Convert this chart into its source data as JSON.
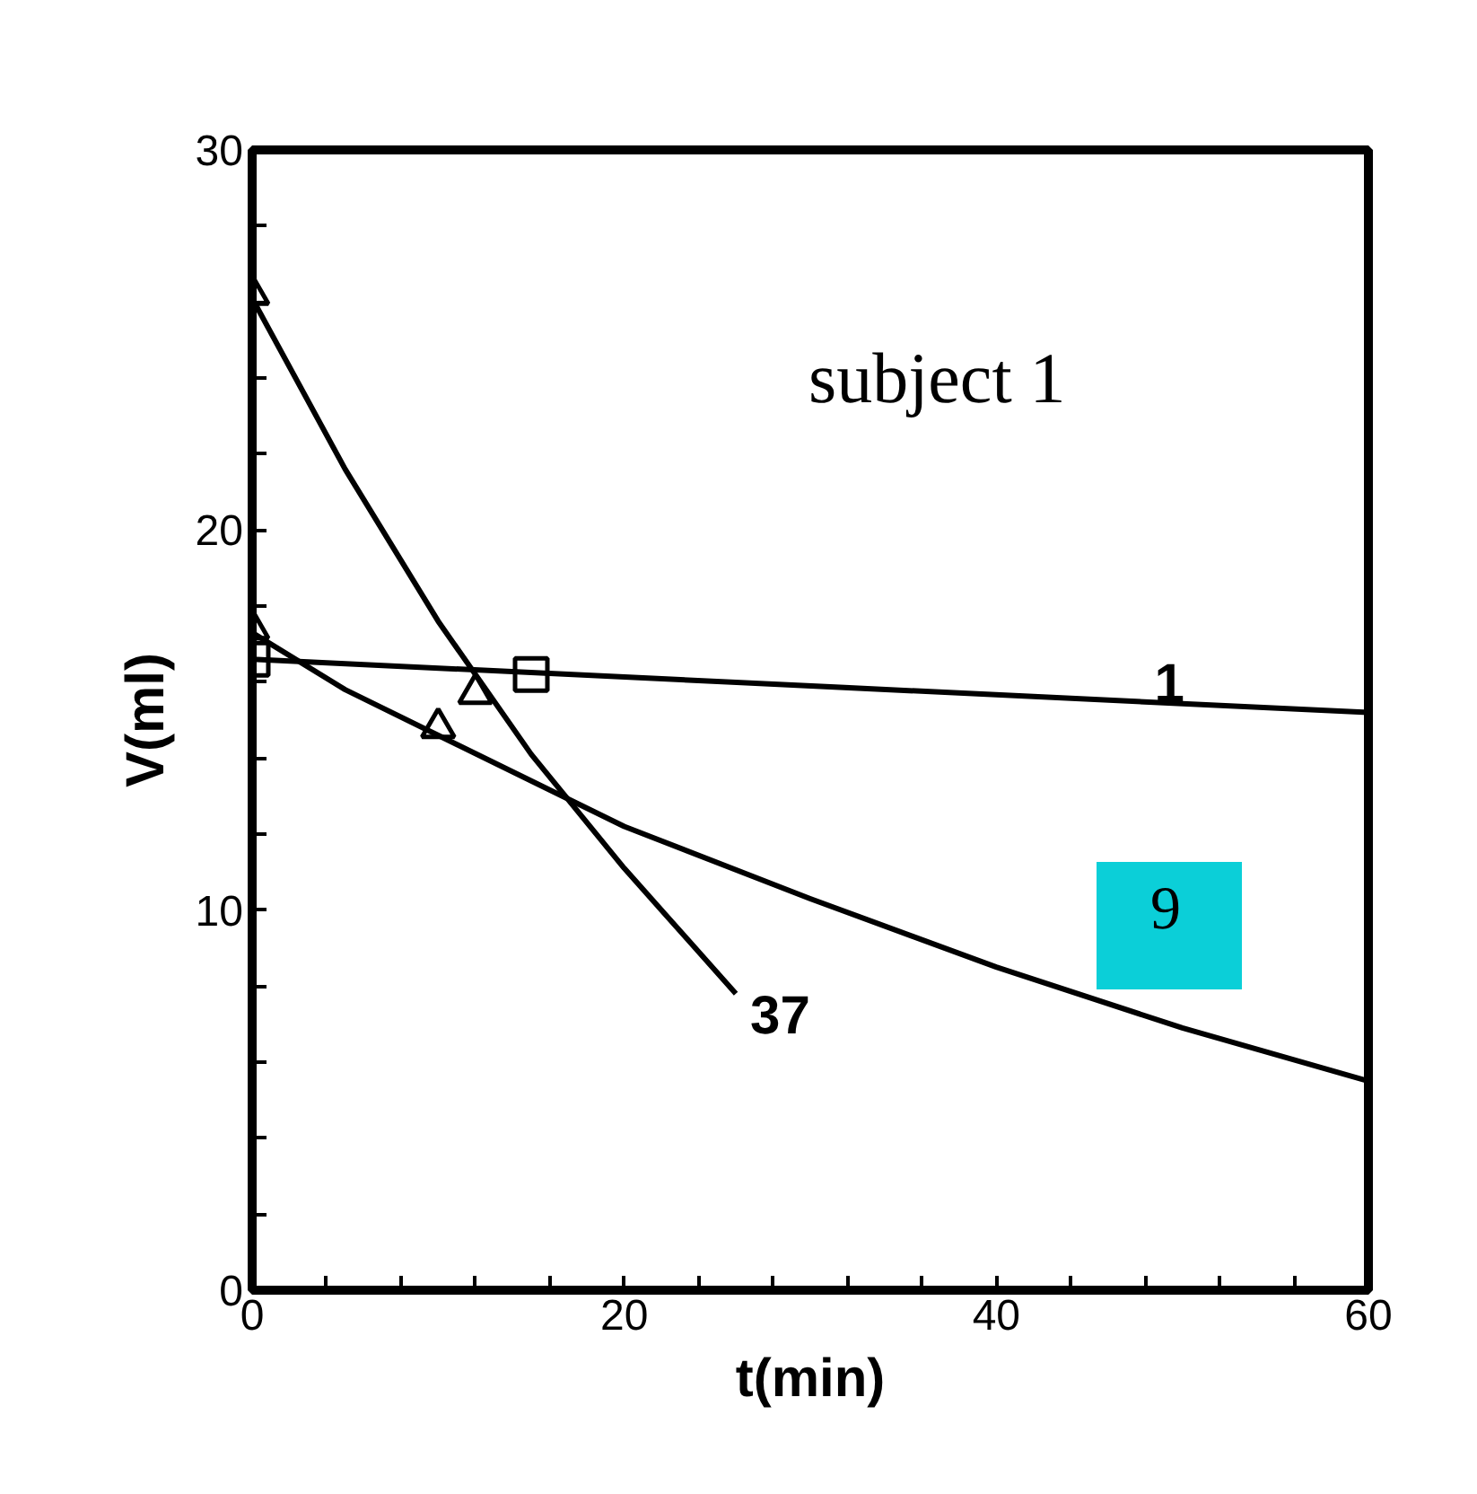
{
  "chart_data": {
    "type": "line",
    "xlabel": "t(min)",
    "ylabel": "V(ml)",
    "xlim": [
      0,
      60
    ],
    "ylim": [
      0,
      30
    ],
    "xticks": [
      0,
      {
        "value": 4,
        "label": null
      },
      {
        "value": 8,
        "label": null
      },
      {
        "value": 12,
        "label": null
      },
      {
        "value": 16,
        "label": null
      },
      20,
      {
        "value": 24,
        "label": null
      },
      {
        "value": 28,
        "label": null
      },
      {
        "value": 32,
        "label": null
      },
      {
        "value": 36,
        "label": null
      },
      40,
      {
        "value": 44,
        "label": null
      },
      {
        "value": 48,
        "label": null
      },
      {
        "value": 52,
        "label": null
      },
      {
        "value": 56,
        "label": null
      },
      60
    ],
    "yticks": [
      0,
      {
        "value": 2,
        "label": null
      },
      {
        "value": 4,
        "label": null
      },
      {
        "value": 6,
        "label": null
      },
      {
        "value": 8,
        "label": null
      },
      10,
      {
        "value": 12,
        "label": null
      },
      {
        "value": 14,
        "label": null
      },
      {
        "value": 16,
        "label": null
      },
      {
        "value": 18,
        "label": null
      },
      20,
      {
        "value": 22,
        "label": null
      },
      {
        "value": 24,
        "label": null
      },
      {
        "value": 26,
        "label": null
      },
      {
        "value": 28,
        "label": null
      },
      30
    ],
    "grid": false,
    "line_style": "solid",
    "series": [
      {
        "color": "#000000",
        "x": [
          0,
          60
        ],
        "values": [
          16.6,
          15.2
        ]
      },
      {
        "color": "#000000",
        "x": [
          0,
          5,
          10,
          15,
          20,
          30,
          40,
          50,
          60
        ],
        "values": [
          17.3,
          15.8,
          14.6,
          13.4,
          12.2,
          10.3,
          8.5,
          6.9,
          5.5
        ]
      },
      {
        "color": "#000000",
        "x": [
          0,
          5,
          10,
          15,
          20,
          26
        ],
        "values": [
          26.1,
          21.6,
          17.6,
          14.1,
          11.1,
          7.8
        ]
      },
      {
        "type": "scatter",
        "color": "#000000",
        "marker": "square",
        "x": [
          0,
          15
        ],
        "values": [
          16.6,
          16.2
        ]
      },
      {
        "type": "scatter",
        "color": "#000000",
        "marker": "triangle",
        "x": [
          0,
          10
        ],
        "values": [
          17.4,
          14.8
        ]
      },
      {
        "type": "scatter",
        "color": "#000000",
        "marker": "triangle",
        "x": [
          0,
          12
        ],
        "values": [
          26.2,
          15.7
        ]
      }
    ],
    "annotations": [
      "subject 1",
      {
        "text": "1",
        "x": 48.5,
        "y": 15.5
      },
      "9",
      {
        "text": "37",
        "x": 26,
        "y": 7.8
      }
    ]
  }
}
